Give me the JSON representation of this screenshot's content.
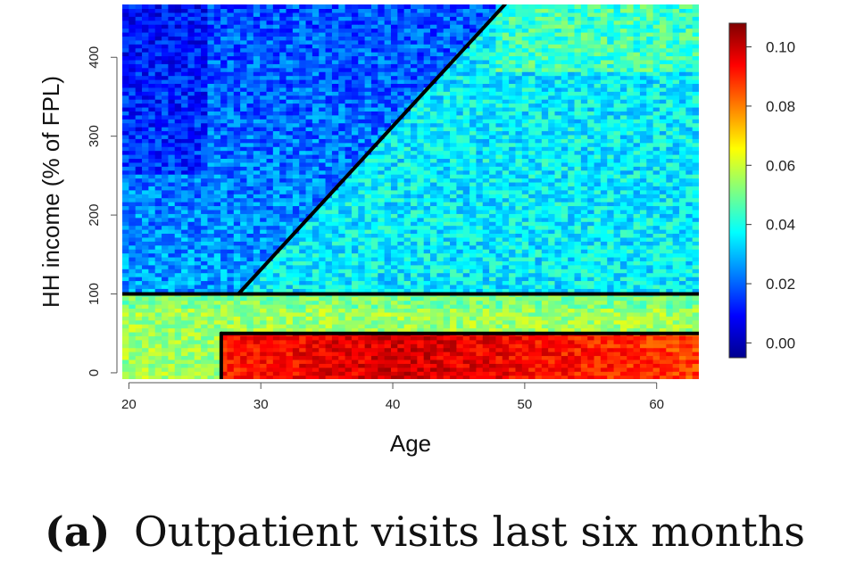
{
  "caption": {
    "tag": "(a)",
    "text": "Outpatient visits last six months"
  },
  "chart_data": {
    "type": "heatmap",
    "xlabel": "Age",
    "ylabel": "HH income (% of FPL)",
    "xlim": [
      19.5,
      63.2
    ],
    "ylim": [
      -8,
      467
    ],
    "x_ticks": [
      20,
      30,
      40,
      50,
      60
    ],
    "y_ticks": [
      0,
      100,
      200,
      300,
      400
    ],
    "colorbar": {
      "min": -0.005,
      "max": 0.108,
      "ticks": [
        0.0,
        0.02,
        0.04,
        0.06,
        0.08,
        0.1
      ],
      "tick_labels": [
        "0.00",
        "0.02",
        "0.04",
        "0.06",
        "0.08",
        "0.10"
      ],
      "colormap": [
        "#00008F",
        "#0000FF",
        "#0080FF",
        "#00FFFF",
        "#80FF80",
        "#FFFF00",
        "#FF8000",
        "#FF0000",
        "#800000"
      ]
    },
    "value_field": {
      "description_levels": {
        "income_above_100": 0.03,
        "income_0_to_100_under_27": 0.055,
        "income_0_to_50_age_27_plus": 0.095
      }
    },
    "boundary_lines": [
      {
        "from": [
          28.3,
          100
        ],
        "to": [
          48.5,
          467
        ]
      },
      {
        "from": [
          19.5,
          100
        ],
        "to": [
          63.2,
          100
        ]
      },
      {
        "from": [
          27,
          50
        ],
        "to": [
          63.2,
          50
        ]
      },
      {
        "from": [
          27,
          50
        ],
        "to": [
          27,
          -8
        ]
      }
    ],
    "grid": false
  }
}
